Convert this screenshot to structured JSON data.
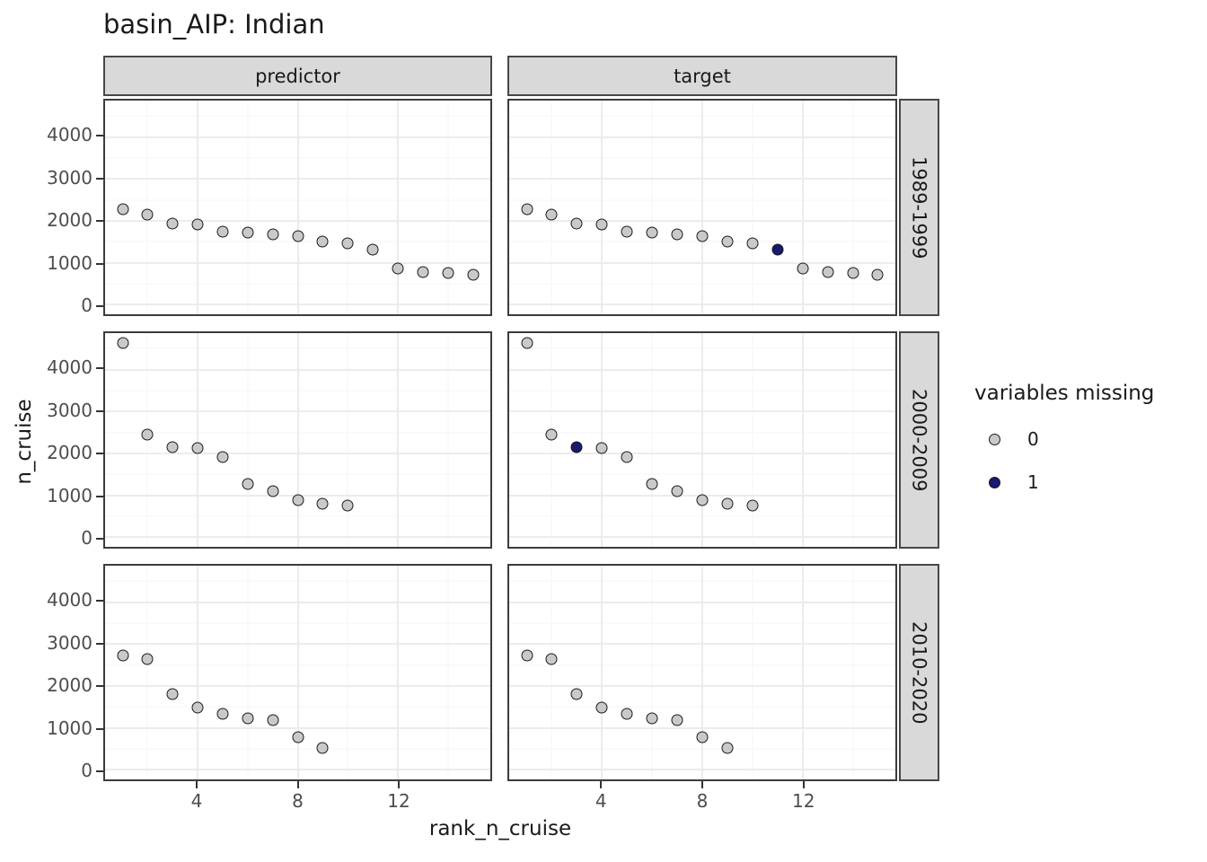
{
  "title": "basin_AIP: Indian",
  "legend": {
    "title": "variables missing",
    "items": [
      {
        "label": "0",
        "color": "#C9C9C9"
      },
      {
        "label": "1",
        "color": "#191970"
      }
    ]
  },
  "chart_data": {
    "type": "scatter",
    "title": "basin_AIP: Indian",
    "xlabel": "rank_n_cruise",
    "ylabel": "n_cruise",
    "legend_title": "variables missing",
    "legend_position": "right",
    "grid": true,
    "facet_columns": [
      "predictor",
      "target"
    ],
    "facet_rows": [
      "1989-1999",
      "2000-2009",
      "2010-2020"
    ],
    "x_ticks": [
      4,
      8,
      12
    ],
    "y_ticks": [
      0,
      1000,
      2000,
      3000,
      4000
    ],
    "x_minor": [
      2,
      6,
      10,
      14
    ],
    "y_minor": [
      500,
      1500,
      2500,
      3500,
      4500
    ],
    "xlim": [
      0.3,
      15.7
    ],
    "ylim": [
      -232,
      4872
    ],
    "colors": {
      "missing_0_fill": "#C9C9C9",
      "missing_1_fill": "#191970",
      "point_stroke": "#1a1a1a"
    },
    "rows": [
      {
        "facet": "1989-1999",
        "x_ranks": [
          1,
          2,
          3,
          4,
          5,
          6,
          7,
          8,
          9,
          10,
          11,
          12,
          13,
          14,
          15
        ],
        "values": [
          2270,
          2140,
          1930,
          1920,
          1750,
          1720,
          1670,
          1640,
          1510,
          1460,
          1320,
          860,
          780,
          750,
          710
        ],
        "target_missing_ranks": [
          11
        ]
      },
      {
        "facet": "2000-2009",
        "x_ranks": [
          1,
          2,
          3,
          4,
          5,
          6,
          7,
          8,
          9,
          10
        ],
        "values": [
          4640,
          2450,
          2140,
          2120,
          1920,
          1260,
          1090,
          880,
          800,
          760
        ],
        "target_missing_ranks": [
          3
        ]
      },
      {
        "facet": "2010-2020",
        "x_ranks": [
          1,
          2,
          3,
          4,
          5,
          6,
          7,
          8,
          9
        ],
        "values": [
          2720,
          2650,
          1800,
          1490,
          1340,
          1230,
          1190,
          770,
          520
        ],
        "target_missing_ranks": []
      }
    ]
  }
}
